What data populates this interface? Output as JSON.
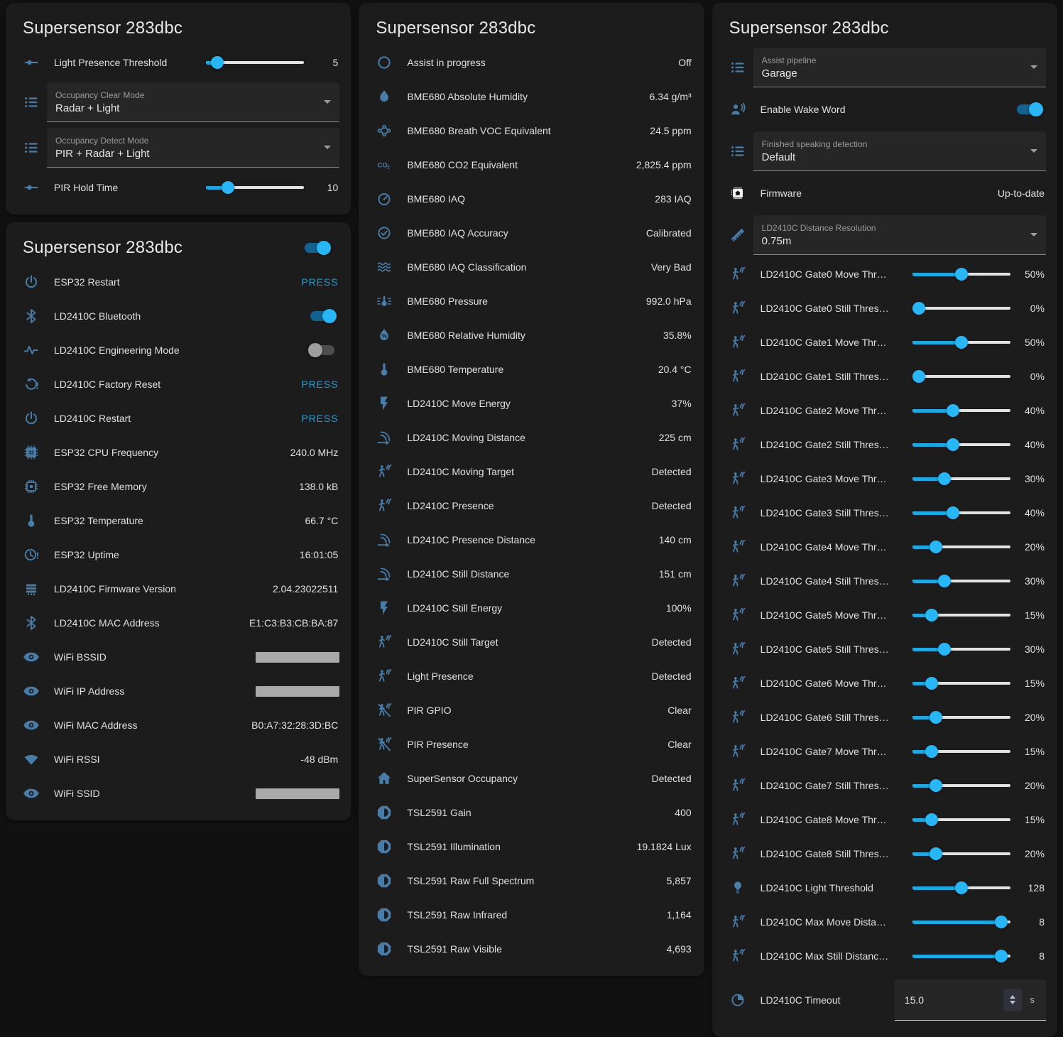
{
  "colors": {
    "page_bg": "#111111",
    "card_bg": "#1c1c1c",
    "accent_blue": "#1ea7e0",
    "knob_blue": "#29b6f6",
    "icon_blue": "#4a7ca8",
    "press_blue": "#0ba2e2",
    "redacted_gray": "#a9a9a9"
  },
  "columns": [
    {
      "cards": [
        {
          "title": "Supersensor 283dbc",
          "header_toggle": null,
          "rows": [
            {
              "type": "slider",
              "icon": "tune",
              "label": "Light Presence Threshold",
              "value": "5",
              "percent": 6
            },
            {
              "type": "select",
              "icon": "list",
              "sub_label": "Occupancy Clear Mode",
              "value": "Radar + Light"
            },
            {
              "type": "select",
              "icon": "list",
              "sub_label": "Occupancy Detect Mode",
              "value": "PIR + Radar + Light"
            },
            {
              "type": "slider",
              "icon": "tune",
              "label": "PIR Hold Time",
              "value": "10",
              "percent": 18
            }
          ]
        },
        {
          "title": "Supersensor 283dbc",
          "header_toggle": "on",
          "rows": [
            {
              "type": "press",
              "icon": "power",
              "label": "ESP32 Restart",
              "value": "PRESS"
            },
            {
              "type": "toggle",
              "icon": "bluetooth",
              "label": "LD2410C Bluetooth",
              "state": "on"
            },
            {
              "type": "toggle",
              "icon": "pulse",
              "label": "LD2410C Engineering Mode",
              "state": "off"
            },
            {
              "type": "press",
              "icon": "restore-alert",
              "label": "LD2410C Factory Reset",
              "value": "PRESS"
            },
            {
              "type": "press",
              "icon": "power",
              "label": "LD2410C Restart",
              "value": "PRESS"
            },
            {
              "type": "text",
              "icon": "chip-32",
              "label": "ESP32 CPU Frequency",
              "value": "240.0 MHz"
            },
            {
              "type": "text",
              "icon": "memory",
              "label": "ESP32 Free Memory",
              "value": "138.0 kB"
            },
            {
              "type": "text",
              "icon": "thermometer",
              "label": "ESP32 Temperature",
              "value": "66.7 °C"
            },
            {
              "type": "text",
              "icon": "clock-alert",
              "label": "ESP32 Uptime",
              "value": "16:01:05"
            },
            {
              "type": "text",
              "icon": "chip",
              "label": "LD2410C Firmware Version",
              "value": "2.04.23022511"
            },
            {
              "type": "text",
              "icon": "bluetooth",
              "label": "LD2410C MAC Address",
              "value": "E1:C3:B3:CB:BA:87"
            },
            {
              "type": "redacted",
              "icon": "eye",
              "label": "WiFi BSSID"
            },
            {
              "type": "redacted",
              "icon": "eye",
              "label": "WiFi IP Address"
            },
            {
              "type": "text",
              "icon": "eye",
              "label": "WiFi MAC Address",
              "value": "B0:A7:32:28:3D:BC"
            },
            {
              "type": "text",
              "icon": "wifi",
              "label": "WiFi RSSI",
              "value": "-48 dBm"
            },
            {
              "type": "redacted",
              "icon": "eye",
              "label": "WiFi SSID"
            }
          ]
        }
      ]
    },
    {
      "cards": [
        {
          "title": "Supersensor 283dbc",
          "header_toggle": null,
          "rows": [
            {
              "type": "text",
              "icon": "assist-circle",
              "label": "Assist in progress",
              "value": "Off"
            },
            {
              "type": "text",
              "icon": "water",
              "label": "BME680 Absolute Humidity",
              "value": "6.34 g/m³"
            },
            {
              "type": "text",
              "icon": "molecule",
              "label": "BME680 Breath VOC Equivalent",
              "value": "24.5 ppm"
            },
            {
              "type": "text",
              "icon": "co2",
              "label": "BME680 CO2 Equivalent",
              "value": "2,825.4 ppm"
            },
            {
              "type": "text",
              "icon": "gauge",
              "label": "BME680 IAQ",
              "value": "283 IAQ"
            },
            {
              "type": "text",
              "icon": "check-circle",
              "label": "BME680 IAQ Accuracy",
              "value": "Calibrated"
            },
            {
              "type": "text",
              "icon": "air-filter",
              "label": "BME680 IAQ Classification",
              "value": "Very Bad"
            },
            {
              "type": "text",
              "icon": "pressure",
              "label": "BME680 Pressure",
              "value": "992.0 hPa"
            },
            {
              "type": "text",
              "icon": "water-percent",
              "label": "BME680 Relative Humidity",
              "value": "35.8%"
            },
            {
              "type": "text",
              "icon": "thermometer",
              "label": "BME680 Temperature",
              "value": "20.4 °C"
            },
            {
              "type": "text",
              "icon": "flash",
              "label": "LD2410C Move Energy",
              "value": "37%"
            },
            {
              "type": "text",
              "icon": "signal-distance",
              "label": "LD2410C Moving Distance",
              "value": "225 cm"
            },
            {
              "type": "text",
              "icon": "motion-sensor",
              "label": "LD2410C Moving Target",
              "value": "Detected"
            },
            {
              "type": "text",
              "icon": "motion-sensor",
              "label": "LD2410C Presence",
              "value": "Detected"
            },
            {
              "type": "text",
              "icon": "signal-distance",
              "label": "LD2410C Presence Distance",
              "value": "140 cm"
            },
            {
              "type": "text",
              "icon": "signal-distance",
              "label": "LD2410C Still Distance",
              "value": "151 cm"
            },
            {
              "type": "text",
              "icon": "flash",
              "label": "LD2410C Still Energy",
              "value": "100%"
            },
            {
              "type": "text",
              "icon": "motion-sensor",
              "label": "LD2410C Still Target",
              "value": "Detected"
            },
            {
              "type": "text",
              "icon": "motion-sensor",
              "label": "Light Presence",
              "value": "Detected"
            },
            {
              "type": "text",
              "icon": "motion-sensor-off",
              "label": "PIR GPIO",
              "value": "Clear"
            },
            {
              "type": "text",
              "icon": "motion-sensor-off",
              "label": "PIR Presence",
              "value": "Clear"
            },
            {
              "type": "text",
              "icon": "home",
              "label": "SuperSensor Occupancy",
              "value": "Detected"
            },
            {
              "type": "text",
              "icon": "brightness",
              "label": "TSL2591 Gain",
              "value": "400"
            },
            {
              "type": "text",
              "icon": "brightness",
              "label": "TSL2591 Illumination",
              "value": "19.1824 Lux"
            },
            {
              "type": "text",
              "icon": "brightness",
              "label": "TSL2591 Raw Full Spectrum",
              "value": "5,857"
            },
            {
              "type": "text",
              "icon": "brightness",
              "label": "TSL2591 Raw Infrared",
              "value": "1,164"
            },
            {
              "type": "text",
              "icon": "brightness",
              "label": "TSL2591 Raw Visible",
              "value": "4,693"
            }
          ]
        }
      ]
    },
    {
      "cards": [
        {
          "title": "Supersensor 283dbc",
          "header_toggle": null,
          "right": true,
          "rows": [
            {
              "type": "select",
              "icon": "list",
              "sub_label": "Assist pipeline",
              "value": "Garage"
            },
            {
              "type": "toggle",
              "icon": "account-voice",
              "label": "Enable Wake Word",
              "state": "on",
              "h56": true
            },
            {
              "type": "select",
              "icon": "list",
              "sub_label": "Finished speaking detection",
              "value": "Default"
            },
            {
              "type": "text",
              "icon": "firmware",
              "label": "Firmware",
              "value": "Up-to-date",
              "h56": true
            },
            {
              "type": "select",
              "icon": "ruler",
              "sub_label": "LD2410C Distance Resolution",
              "value": "0.75m"
            },
            {
              "type": "slider",
              "icon": "motion-sensor",
              "label": "LD2410C Gate0 Move Thr…",
              "value": "50%",
              "percent": 50
            },
            {
              "type": "slider",
              "icon": "motion-sensor",
              "label": "LD2410C Gate0 Still Thres…",
              "value": "0%",
              "percent": 0
            },
            {
              "type": "slider",
              "icon": "motion-sensor",
              "label": "LD2410C Gate1 Move Thr…",
              "value": "50%",
              "percent": 50
            },
            {
              "type": "slider",
              "icon": "motion-sensor",
              "label": "LD2410C Gate1 Still Thres…",
              "value": "0%",
              "percent": 0
            },
            {
              "type": "slider",
              "icon": "motion-sensor",
              "label": "LD2410C Gate2 Move Thr…",
              "value": "40%",
              "percent": 40
            },
            {
              "type": "slider",
              "icon": "motion-sensor",
              "label": "LD2410C Gate2 Still Thres…",
              "value": "40%",
              "percent": 40
            },
            {
              "type": "slider",
              "icon": "motion-sensor",
              "label": "LD2410C Gate3 Move Thr…",
              "value": "30%",
              "percent": 30
            },
            {
              "type": "slider",
              "icon": "motion-sensor",
              "label": "LD2410C Gate3 Still Thres…",
              "value": "40%",
              "percent": 40
            },
            {
              "type": "slider",
              "icon": "motion-sensor",
              "label": "LD2410C Gate4 Move Thr…",
              "value": "20%",
              "percent": 20
            },
            {
              "type": "slider",
              "icon": "motion-sensor",
              "label": "LD2410C Gate4 Still Thres…",
              "value": "30%",
              "percent": 30
            },
            {
              "type": "slider",
              "icon": "motion-sensor",
              "label": "LD2410C Gate5 Move Thr…",
              "value": "15%",
              "percent": 15
            },
            {
              "type": "slider",
              "icon": "motion-sensor",
              "label": "LD2410C Gate5 Still Thres…",
              "value": "30%",
              "percent": 30
            },
            {
              "type": "slider",
              "icon": "motion-sensor",
              "label": "LD2410C Gate6 Move Thr…",
              "value": "15%",
              "percent": 15
            },
            {
              "type": "slider",
              "icon": "motion-sensor",
              "label": "LD2410C Gate6 Still Thres…",
              "value": "20%",
              "percent": 20
            },
            {
              "type": "slider",
              "icon": "motion-sensor",
              "label": "LD2410C Gate7 Move Thr…",
              "value": "15%",
              "percent": 15
            },
            {
              "type": "slider",
              "icon": "motion-sensor",
              "label": "LD2410C Gate7 Still Thres…",
              "value": "20%",
              "percent": 20
            },
            {
              "type": "slider",
              "icon": "motion-sensor",
              "label": "LD2410C Gate8 Move Thr…",
              "value": "15%",
              "percent": 15
            },
            {
              "type": "slider",
              "icon": "motion-sensor",
              "label": "LD2410C Gate8 Still Thres…",
              "value": "20%",
              "percent": 20
            },
            {
              "type": "slider",
              "icon": "lightbulb",
              "label": "LD2410C Light Threshold",
              "value": "128",
              "percent": 50
            },
            {
              "type": "slider",
              "icon": "motion-sensor",
              "label": "LD2410C Max Move Dista…",
              "value": "8",
              "percent": 97
            },
            {
              "type": "slider",
              "icon": "motion-sensor",
              "label": "LD2410C Max Still Distanc…",
              "value": "8",
              "percent": 97
            },
            {
              "type": "number",
              "icon": "timer",
              "label": "LD2410C Timeout",
              "value": "15.0",
              "unit": "s"
            }
          ]
        }
      ]
    }
  ]
}
